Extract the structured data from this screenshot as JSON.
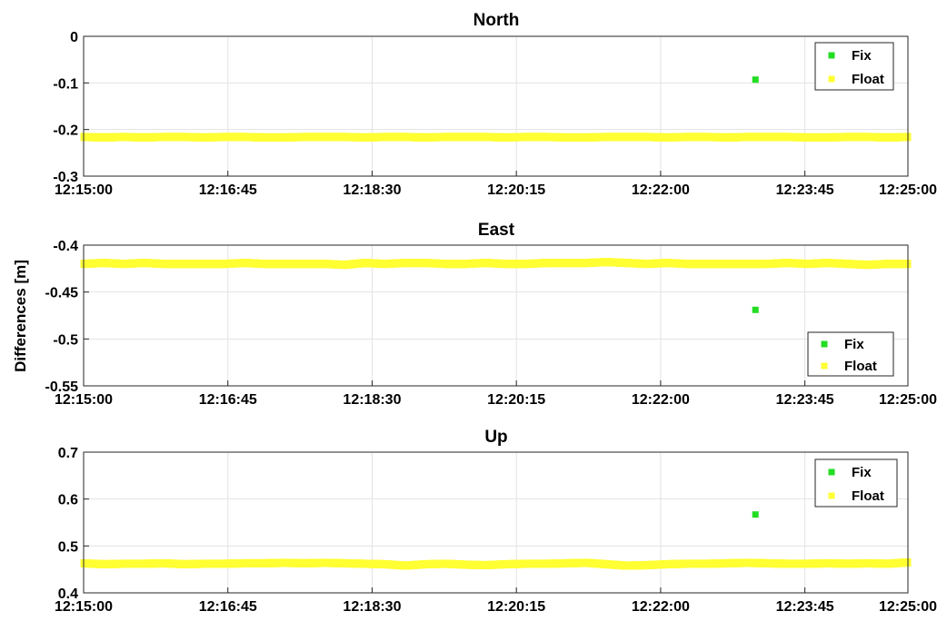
{
  "chart_data": {
    "type": "scatter",
    "ylabel": "Differences [m]",
    "x_ticks": [
      "12:15:00",
      "12:16:45",
      "12:18:30",
      "12:20:15",
      "12:22:00",
      "12:23:45",
      "12:25:00"
    ],
    "x_tick_seconds": [
      0,
      105,
      210,
      315,
      420,
      525,
      600
    ],
    "xlim_seconds": [
      0,
      600
    ],
    "grid": true,
    "colors": {
      "Fix": "#22dd22",
      "Float": "#ffff33"
    },
    "panels": [
      {
        "title": "North",
        "ylim": [
          -0.3,
          0
        ],
        "y_ticks": [
          "0",
          "-0.1",
          "-0.2",
          "-0.3"
        ],
        "y_tick_values": [
          0,
          -0.1,
          -0.2,
          -0.3
        ],
        "legend_position": "top-right",
        "legend": [
          "Fix",
          "Float"
        ],
        "series": [
          {
            "name": "Fix",
            "points": [
              {
                "x": "12:23:09",
                "y": -0.093
              }
            ]
          },
          {
            "name": "Float",
            "x_range": [
              "12:15:00",
              "12:25:00"
            ],
            "y_profile": [
              -0.216,
              -0.217,
              -0.216,
              -0.217,
              -0.216,
              -0.216,
              -0.217,
              -0.216,
              -0.216,
              -0.217,
              -0.217,
              -0.216,
              -0.216,
              -0.216,
              -0.217,
              -0.216,
              -0.216,
              -0.217,
              -0.216,
              -0.216,
              -0.216,
              -0.217,
              -0.216,
              -0.216,
              -0.217,
              -0.217,
              -0.216,
              -0.216,
              -0.216,
              -0.217,
              -0.216,
              -0.216,
              -0.217,
              -0.216,
              -0.216,
              -0.216,
              -0.217,
              -0.217,
              -0.216,
              -0.216,
              -0.217,
              -0.216
            ]
          }
        ]
      },
      {
        "title": "East",
        "ylim": [
          -0.55,
          -0.4
        ],
        "y_ticks": [
          "-0.4",
          "-0.45",
          "-0.5",
          "-0.55"
        ],
        "y_tick_values": [
          -0.4,
          -0.45,
          -0.5,
          -0.55
        ],
        "legend_position": "bottom-right",
        "legend": [
          "Fix",
          "Float"
        ],
        "series": [
          {
            "name": "Fix",
            "points": [
              {
                "x": "12:23:09",
                "y": -0.469
              }
            ]
          },
          {
            "name": "Float",
            "x_range": [
              "12:15:00",
              "12:25:00"
            ],
            "y_profile": [
              -0.42,
              -0.419,
              -0.42,
              -0.419,
              -0.42,
              -0.42,
              -0.42,
              -0.42,
              -0.419,
              -0.42,
              -0.42,
              -0.42,
              -0.42,
              -0.421,
              -0.419,
              -0.42,
              -0.419,
              -0.419,
              -0.42,
              -0.42,
              -0.419,
              -0.42,
              -0.42,
              -0.419,
              -0.419,
              -0.419,
              -0.418,
              -0.419,
              -0.42,
              -0.419,
              -0.42,
              -0.42,
              -0.42,
              -0.42,
              -0.42,
              -0.419,
              -0.42,
              -0.419,
              -0.42,
              -0.421,
              -0.42,
              -0.42
            ]
          }
        ]
      },
      {
        "title": "Up",
        "ylim": [
          0.4,
          0.7
        ],
        "y_ticks": [
          "0.7",
          "0.6",
          "0.5",
          "0.4"
        ],
        "y_tick_values": [
          0.7,
          0.6,
          0.5,
          0.4
        ],
        "legend_position": "top-right",
        "legend": [
          "Fix",
          "Float"
        ],
        "series": [
          {
            "name": "Fix",
            "points": [
              {
                "x": "12:23:09",
                "y": 0.567
              }
            ]
          },
          {
            "name": "Float",
            "x_range": [
              "12:15:00",
              "12:25:00"
            ],
            "y_profile": [
              0.463,
              0.461,
              0.462,
              0.462,
              0.463,
              0.461,
              0.462,
              0.462,
              0.463,
              0.463,
              0.464,
              0.463,
              0.464,
              0.463,
              0.462,
              0.461,
              0.458,
              0.461,
              0.462,
              0.46,
              0.459,
              0.461,
              0.462,
              0.462,
              0.463,
              0.464,
              0.461,
              0.458,
              0.459,
              0.461,
              0.462,
              0.462,
              0.463,
              0.464,
              0.463,
              0.462,
              0.462,
              0.463,
              0.462,
              0.463,
              0.462,
              0.465
            ]
          }
        ]
      }
    ]
  }
}
